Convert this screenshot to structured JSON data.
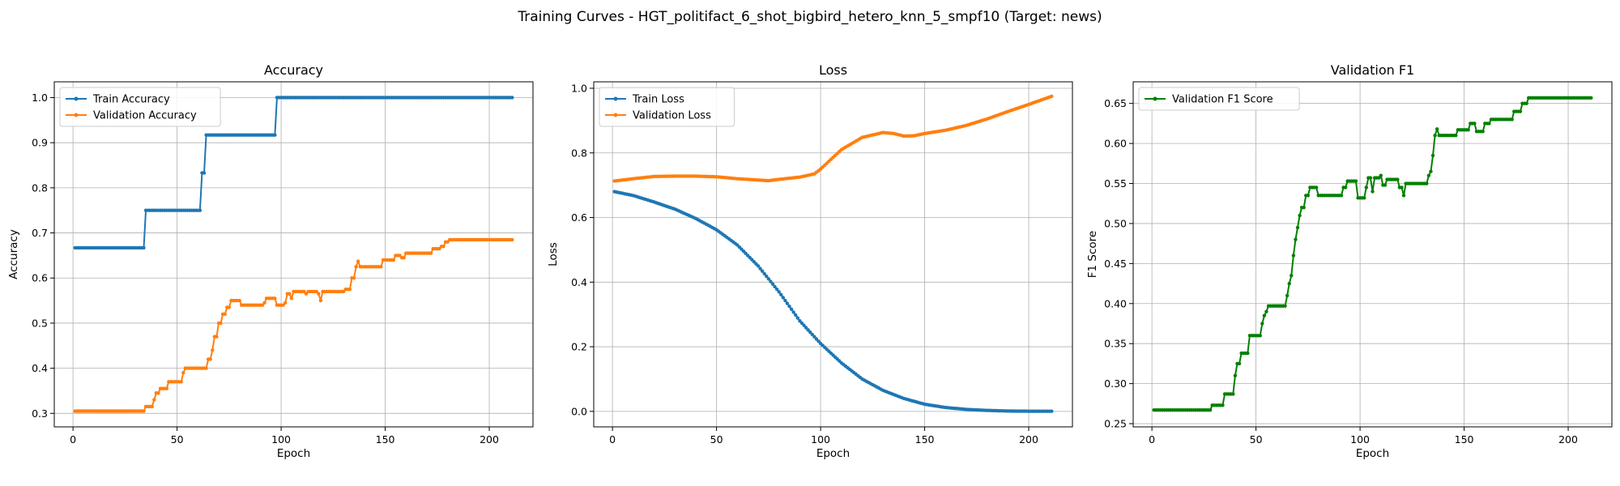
{
  "figure": {
    "title": "Training Curves - HGT_politifact_6_shot_bigbird_hetero_knn_5_smpf10 (Target: news)"
  },
  "chart_data": [
    {
      "type": "line",
      "title": "Accuracy",
      "xlabel": "Epoch",
      "ylabel": "Accuracy",
      "xlim": [
        -9,
        221
      ],
      "ylim": [
        0.27,
        1.035
      ],
      "xticks": [
        0,
        50,
        100,
        150,
        200
      ],
      "yticks": [
        0.3,
        0.4,
        0.5,
        0.6,
        0.7,
        0.8,
        0.9,
        1.0
      ],
      "ytick_labels": [
        "0.3",
        "0.4",
        "0.5",
        "0.6",
        "0.7",
        "0.8",
        "0.9",
        "1.0"
      ],
      "grid": true,
      "legend": "upper left",
      "x_domain": [
        1,
        211
      ],
      "series": [
        {
          "name": "Train Accuracy",
          "color": "#1f77b4",
          "step_points": [
            [
              1,
              0.667
            ],
            [
              35,
              0.667
            ],
            [
              35,
              0.75
            ],
            [
              61,
              0.75
            ],
            [
              62,
              0.833
            ],
            [
              63,
              0.833
            ],
            [
              64,
              0.917
            ],
            [
              97,
              0.917
            ],
            [
              98,
              1.0
            ],
            [
              211,
              1.0
            ]
          ]
        },
        {
          "name": "Validation Accuracy",
          "color": "#ff7f0e",
          "step_points": [
            [
              1,
              0.305
            ],
            [
              34,
              0.305
            ],
            [
              35,
              0.315
            ],
            [
              38,
              0.315
            ],
            [
              39,
              0.33
            ],
            [
              40,
              0.345
            ],
            [
              42,
              0.355
            ],
            [
              45,
              0.355
            ],
            [
              46,
              0.37
            ],
            [
              52,
              0.37
            ],
            [
              53,
              0.39
            ],
            [
              54,
              0.4
            ],
            [
              64,
              0.4
            ],
            [
              65,
              0.42
            ],
            [
              67,
              0.44
            ],
            [
              68,
              0.47
            ],
            [
              70,
              0.5
            ],
            [
              72,
              0.52
            ],
            [
              74,
              0.535
            ],
            [
              76,
              0.55
            ],
            [
              80,
              0.55
            ],
            [
              81,
              0.54
            ],
            [
              92,
              0.545
            ],
            [
              93,
              0.555
            ],
            [
              97,
              0.555
            ],
            [
              98,
              0.54
            ],
            [
              102,
              0.545
            ],
            [
              103,
              0.565
            ],
            [
              105,
              0.555
            ],
            [
              106,
              0.57
            ],
            [
              112,
              0.565
            ],
            [
              113,
              0.57
            ],
            [
              118,
              0.565
            ],
            [
              119,
              0.55
            ],
            [
              120,
              0.57
            ],
            [
              130,
              0.57
            ],
            [
              131,
              0.575
            ],
            [
              134,
              0.6
            ],
            [
              136,
              0.625
            ],
            [
              137,
              0.637
            ],
            [
              138,
              0.625
            ],
            [
              148,
              0.625
            ],
            [
              149,
              0.64
            ],
            [
              154,
              0.64
            ],
            [
              155,
              0.65
            ],
            [
              158,
              0.645
            ],
            [
              160,
              0.655
            ],
            [
              172,
              0.655
            ],
            [
              173,
              0.665
            ],
            [
              177,
              0.67
            ],
            [
              179,
              0.68
            ],
            [
              181,
              0.685
            ],
            [
              211,
              0.685
            ]
          ]
        }
      ]
    },
    {
      "type": "line",
      "title": "Loss",
      "xlabel": "Epoch",
      "ylabel": "Loss",
      "xlim": [
        -9,
        221
      ],
      "ylim": [
        -0.048,
        1.02
      ],
      "xticks": [
        0,
        50,
        100,
        150,
        200
      ],
      "yticks": [
        0.0,
        0.2,
        0.4,
        0.6,
        0.8,
        1.0
      ],
      "ytick_labels": [
        "0.0",
        "0.2",
        "0.4",
        "0.6",
        "0.8",
        "1.0"
      ],
      "grid": true,
      "legend": "upper left",
      "x_domain": [
        1,
        211
      ],
      "series": [
        {
          "name": "Train Loss",
          "color": "#1f77b4",
          "curve_points": [
            [
              1,
              0.68
            ],
            [
              10,
              0.668
            ],
            [
              20,
              0.648
            ],
            [
              30,
              0.626
            ],
            [
              40,
              0.597
            ],
            [
              50,
              0.562
            ],
            [
              60,
              0.515
            ],
            [
              70,
              0.45
            ],
            [
              80,
              0.37
            ],
            [
              90,
              0.28
            ],
            [
              100,
              0.21
            ],
            [
              110,
              0.15
            ],
            [
              120,
              0.1
            ],
            [
              130,
              0.065
            ],
            [
              140,
              0.04
            ],
            [
              150,
              0.022
            ],
            [
              160,
              0.012
            ],
            [
              170,
              0.006
            ],
            [
              180,
              0.003
            ],
            [
              190,
              0.001
            ],
            [
              200,
              0.0005
            ],
            [
              211,
              0.0003
            ]
          ]
        },
        {
          "name": "Validation Loss",
          "color": "#ff7f0e",
          "curve_points": [
            [
              1,
              0.713
            ],
            [
              10,
              0.72
            ],
            [
              20,
              0.727
            ],
            [
              30,
              0.728
            ],
            [
              40,
              0.728
            ],
            [
              50,
              0.726
            ],
            [
              60,
              0.72
            ],
            [
              70,
              0.716
            ],
            [
              75,
              0.714
            ],
            [
              80,
              0.718
            ],
            [
              90,
              0.725
            ],
            [
              97,
              0.735
            ],
            [
              100,
              0.75
            ],
            [
              105,
              0.78
            ],
            [
              110,
              0.81
            ],
            [
              120,
              0.848
            ],
            [
              130,
              0.863
            ],
            [
              135,
              0.86
            ],
            [
              140,
              0.852
            ],
            [
              145,
              0.853
            ],
            [
              150,
              0.86
            ],
            [
              160,
              0.87
            ],
            [
              170,
              0.885
            ],
            [
              180,
              0.905
            ],
            [
              190,
              0.928
            ],
            [
              200,
              0.95
            ],
            [
              211,
              0.975
            ]
          ]
        }
      ]
    },
    {
      "type": "line",
      "title": "Validation F1",
      "xlabel": "Epoch",
      "ylabel": "F1 Score",
      "xlim": [
        -9,
        221
      ],
      "ylim": [
        0.246,
        0.677
      ],
      "xticks": [
        0,
        50,
        100,
        150,
        200
      ],
      "yticks": [
        0.25,
        0.3,
        0.35,
        0.4,
        0.45,
        0.5,
        0.55,
        0.6,
        0.65
      ],
      "ytick_labels": [
        "0.25",
        "0.30",
        "0.35",
        "0.40",
        "0.45",
        "0.50",
        "0.55",
        "0.60",
        "0.65"
      ],
      "grid": true,
      "legend": "upper left",
      "x_domain": [
        1,
        211
      ],
      "series": [
        {
          "name": "Validation F1 Score",
          "color": "#008000",
          "step_points": [
            [
              1,
              0.267
            ],
            [
              28,
              0.267
            ],
            [
              29,
              0.273
            ],
            [
              34,
              0.273
            ],
            [
              35,
              0.287
            ],
            [
              39,
              0.287
            ],
            [
              40,
              0.31
            ],
            [
              41,
              0.325
            ],
            [
              43,
              0.338
            ],
            [
              46,
              0.338
            ],
            [
              47,
              0.36
            ],
            [
              52,
              0.36
            ],
            [
              53,
              0.375
            ],
            [
              54,
              0.385
            ],
            [
              55,
              0.39
            ],
            [
              56,
              0.397
            ],
            [
              64,
              0.397
            ],
            [
              65,
              0.41
            ],
            [
              66,
              0.425
            ],
            [
              67,
              0.435
            ],
            [
              68,
              0.46
            ],
            [
              69,
              0.48
            ],
            [
              70,
              0.495
            ],
            [
              71,
              0.51
            ],
            [
              72,
              0.52
            ],
            [
              74,
              0.535
            ],
            [
              76,
              0.545
            ],
            [
              79,
              0.545
            ],
            [
              80,
              0.535
            ],
            [
              91,
              0.535
            ],
            [
              92,
              0.545
            ],
            [
              94,
              0.553
            ],
            [
              98,
              0.553
            ],
            [
              99,
              0.532
            ],
            [
              102,
              0.532
            ],
            [
              103,
              0.545
            ],
            [
              104,
              0.557
            ],
            [
              106,
              0.54
            ],
            [
              107,
              0.557
            ],
            [
              110,
              0.56
            ],
            [
              111,
              0.548
            ],
            [
              113,
              0.555
            ],
            [
              119,
              0.545
            ],
            [
              121,
              0.535
            ],
            [
              122,
              0.55
            ],
            [
              132,
              0.55
            ],
            [
              133,
              0.56
            ],
            [
              134,
              0.565
            ],
            [
              135,
              0.585
            ],
            [
              136,
              0.61
            ],
            [
              137,
              0.618
            ],
            [
              138,
              0.61
            ],
            [
              146,
              0.61
            ],
            [
              147,
              0.617
            ],
            [
              152,
              0.617
            ],
            [
              153,
              0.625
            ],
            [
              155,
              0.625
            ],
            [
              156,
              0.615
            ],
            [
              159,
              0.615
            ],
            [
              160,
              0.625
            ],
            [
              162,
              0.625
            ],
            [
              163,
              0.63
            ],
            [
              173,
              0.63
            ],
            [
              174,
              0.64
            ],
            [
              177,
              0.64
            ],
            [
              178,
              0.65
            ],
            [
              180,
              0.65
            ],
            [
              181,
              0.657
            ],
            [
              211,
              0.657
            ]
          ]
        }
      ]
    }
  ]
}
